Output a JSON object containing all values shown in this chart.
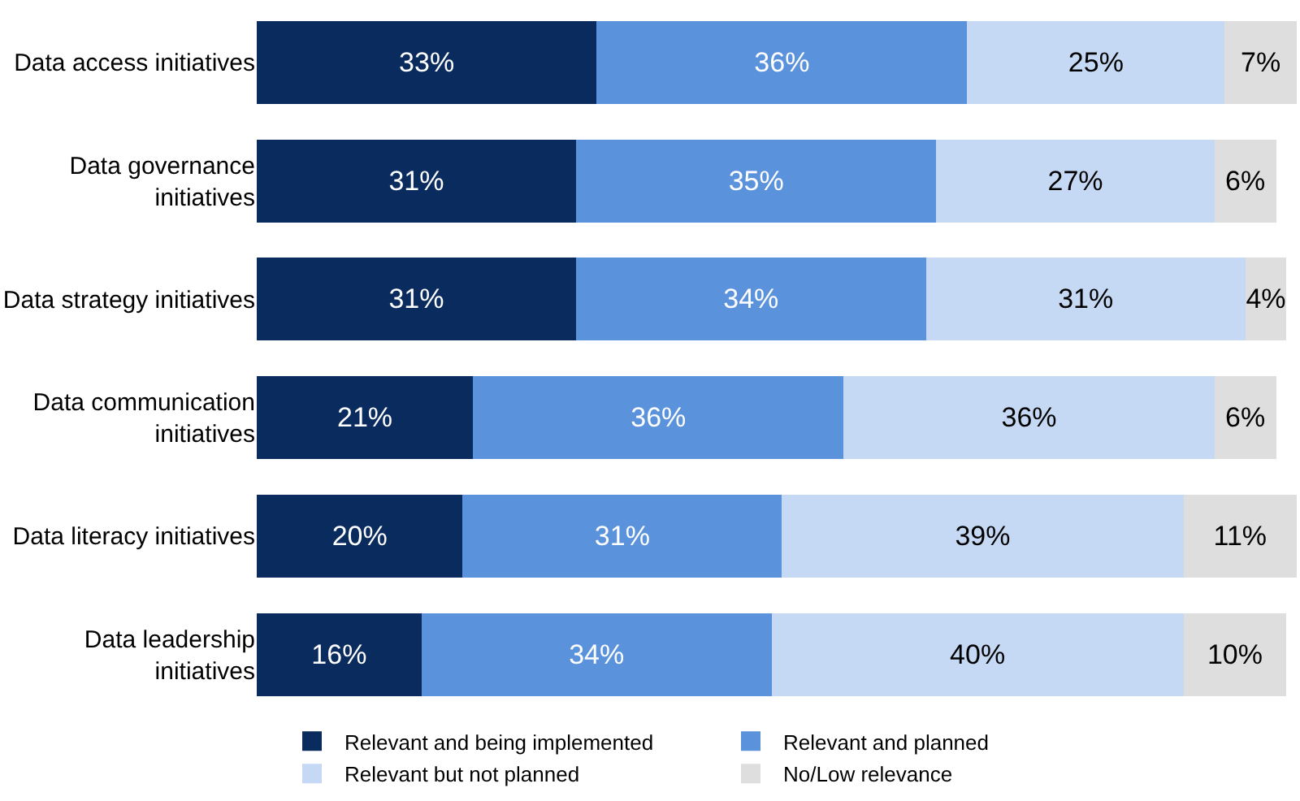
{
  "chart_data": {
    "type": "bar",
    "orientation": "horizontal",
    "stacked": true,
    "legend": "bottom",
    "categories": [
      "Data access initiatives",
      "Data governance initiatives",
      "Data strategy initiatives",
      "Data communication initiatives",
      "Data literacy initiatives",
      "Data leadership initiatives"
    ],
    "series": [
      {
        "name": "Relevant and being implemented",
        "color": "#0a2b5e",
        "values": [
          33,
          31,
          31,
          21,
          20,
          16
        ],
        "value_labels": [
          "33%",
          "31%",
          "31%",
          "21%",
          "20%",
          "16%"
        ]
      },
      {
        "name": "Relevant and planned",
        "color": "#5b92dc",
        "values": [
          36,
          35,
          34,
          36,
          31,
          34
        ],
        "value_labels": [
          "36%",
          "35%",
          "34%",
          "36%",
          "31%",
          "34%"
        ]
      },
      {
        "name": "Relevant but not planned",
        "color": "#c6d9f4",
        "values": [
          25,
          27,
          31,
          36,
          39,
          40
        ],
        "value_labels": [
          "25%",
          "27%",
          "31%",
          "36%",
          "39%",
          "40%"
        ]
      },
      {
        "name": "No/Low relevance",
        "color": "#dedede",
        "values": [
          7,
          6,
          4,
          6,
          11,
          10
        ],
        "value_labels": [
          "7%",
          "6%",
          "4%",
          "6%",
          "11%",
          "10%"
        ]
      }
    ]
  }
}
